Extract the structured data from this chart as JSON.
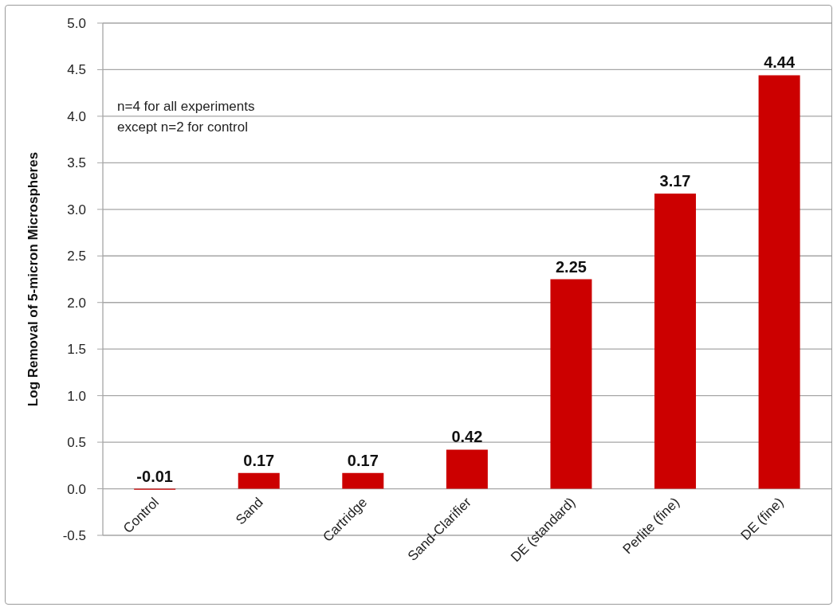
{
  "chart_data": {
    "type": "bar",
    "ylabel": "Log Removal of 5-micron Microspheres",
    "annotations": [
      "n=4 for all experiments",
      "except n=2 for control"
    ],
    "categories": [
      "Control",
      "Sand",
      "Cartridge",
      "Sand-Clarifier",
      "DE (standard)",
      "Perlite (fine)",
      "DE (fine)"
    ],
    "values": [
      -0.01,
      0.17,
      0.17,
      0.42,
      2.25,
      3.17,
      4.44
    ],
    "color": "#cc0000",
    "ylim": [
      -0.5,
      5
    ],
    "yticks": [
      -0.5,
      {
        "value": 0,
        "label": "0.0"
      },
      0.5,
      {
        "value": 1,
        "label": "1.0"
      },
      1.5,
      {
        "value": 2,
        "label": "2.0"
      },
      2.5,
      {
        "value": 3,
        "label": "3.0"
      },
      3.5,
      {
        "value": 4,
        "label": "4.0"
      },
      4.5,
      {
        "value": 5,
        "label": "5.0"
      }
    ],
    "grid": "y",
    "data_labels": true
  }
}
